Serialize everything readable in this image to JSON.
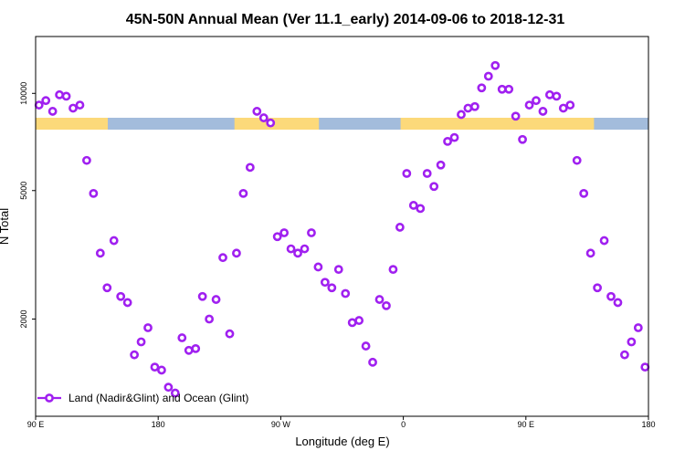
{
  "chart_data": {
    "type": "scatter",
    "title": "45N-50N Annual Mean (Ver 11.1_early)   2014-09-06 to 2018-12-31",
    "xlabel": "Longitude (deg E)",
    "ylabel": "N Total",
    "x_ticks": [
      {
        "value": 90,
        "label": "90 E"
      },
      {
        "value": 180,
        "label": "180"
      },
      {
        "value": 270,
        "label": "90 W"
      },
      {
        "value": 360,
        "label": "0"
      },
      {
        "value": 450,
        "label": "90 E"
      },
      {
        "value": 540,
        "label": "180"
      }
    ],
    "y_ticks": [
      {
        "value": 2000,
        "label": "2000"
      },
      {
        "value": 5000,
        "label": "5000"
      },
      {
        "value": 10000,
        "label": "10000"
      }
    ],
    "xlim": [
      90,
      540
    ],
    "ylim": [
      1000,
      15000
    ],
    "y_scale": "log",
    "legend": {
      "position": "bottom-left",
      "label": "Land (Nadir&Glint) and Ocean (Glint)",
      "color": "#a020f0"
    },
    "land_band": {
      "land_color": "#fcd97a",
      "ocean_color": "#a3bcdc",
      "land_ranges": [
        [
          90,
          143
        ],
        [
          236,
          298
        ],
        [
          358,
          500
        ]
      ]
    },
    "series": [
      {
        "name": "Land (Nadir&Glint) and Ocean (Glint)",
        "color": "#a020f0",
        "x": [
          92.5,
          97.5,
          102.5,
          107.5,
          112.5,
          117.5,
          122.5,
          127.5,
          132.5,
          137.5,
          142.5,
          147.5,
          152.5,
          157.5,
          162.5,
          167.5,
          172.5,
          177.5,
          182.5,
          187.5,
          192.5,
          197.5,
          202.5,
          207.5,
          212.5,
          217.5,
          222.5,
          227.5,
          232.5,
          237.5,
          242.5,
          247.5,
          252.5,
          257.5,
          262.5,
          267.5,
          272.5,
          277.5,
          282.5,
          287.5,
          292.5,
          297.5,
          302.5,
          307.5,
          312.5,
          317.5,
          322.5,
          327.5,
          332.5,
          337.5,
          342.5,
          347.5,
          352.5,
          357.5,
          362.5,
          367.5,
          372.5,
          377.5,
          382.5,
          387.5,
          392.5,
          397.5,
          402.5,
          407.5,
          412.5,
          417.5,
          422.5,
          427.5,
          432.5,
          437.5,
          442.5,
          447.5,
          452.5,
          457.5,
          462.5,
          467.5,
          472.5,
          477.5,
          482.5,
          487.5,
          492.5,
          497.5,
          502.5,
          507.5,
          512.5,
          517.5,
          522.5,
          527.5,
          532.5,
          537.5
        ],
        "y": [
          9200,
          9500,
          8800,
          9900,
          9800,
          9000,
          9200,
          6200,
          4900,
          3200,
          2500,
          3500,
          2350,
          2250,
          1550,
          1700,
          1880,
          1420,
          1390,
          1230,
          1180,
          1750,
          1600,
          1620,
          2350,
          2000,
          2300,
          3100,
          1800,
          3200,
          4900,
          5900,
          8800,
          8400,
          8100,
          3600,
          3700,
          3300,
          3200,
          3300,
          3700,
          2900,
          2600,
          2500,
          2850,
          2400,
          1950,
          1980,
          1650,
          1470,
          2300,
          2200,
          2850,
          3850,
          5650,
          4500,
          4400,
          5650,
          5150,
          6000,
          7100,
          7300,
          8600,
          9000,
          9100,
          10400,
          11300,
          12200,
          10300,
          10300,
          8500,
          7200,
          9200,
          9500,
          8800,
          9900,
          9800,
          9000,
          9200,
          6200,
          4900,
          3200,
          2500,
          3500,
          2350,
          2250,
          1550,
          1700,
          1880,
          1420
        ]
      }
    ]
  }
}
